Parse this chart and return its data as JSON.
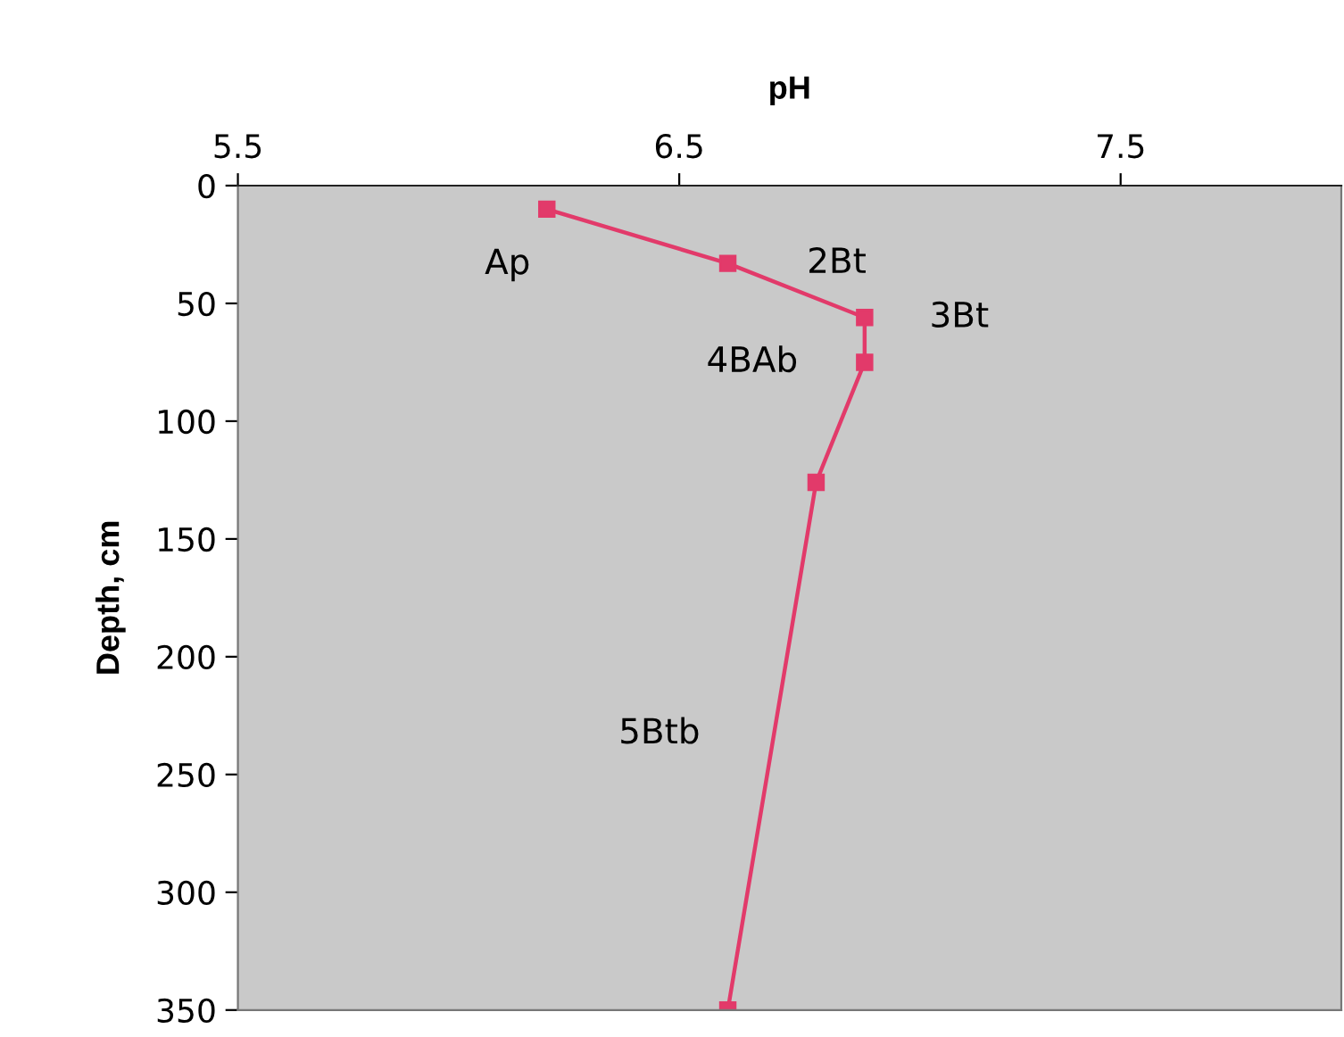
{
  "chart_data": {
    "type": "line",
    "xlabel": "pH",
    "ylabel": "Depth, cm",
    "series": [
      {
        "color": "#e23a6a",
        "x": [
          6.2,
          6.61,
          6.92,
          6.92,
          6.81,
          6.61
        ],
        "values": [
          10,
          33,
          56,
          75,
          126,
          350
        ]
      }
    ],
    "xlim": [
      5.5,
      8.0
    ],
    "xticks": [
      5.5,
      6.5,
      7.5
    ],
    "ylim": [
      350,
      0
    ],
    "yticks": [
      0,
      50,
      100,
      150,
      200,
      250,
      300,
      350
    ],
    "marker": "square",
    "line_style": "solid",
    "grid": false,
    "legend": false,
    "annotations": [
      {
        "text": "Ap",
        "x": 6.2,
        "y": 10
      },
      {
        "text": "2Bt",
        "x": 6.61,
        "y": 33
      },
      {
        "text": "3Bt",
        "x": 6.92,
        "y": 56
      },
      {
        "text": "4BAb",
        "x": 6.92,
        "y": 75
      },
      "5Btb"
    ]
  }
}
